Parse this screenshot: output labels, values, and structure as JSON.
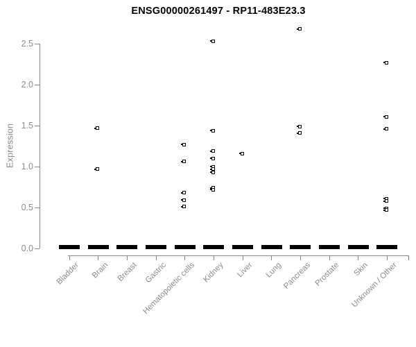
{
  "title": "ENSG00000261497 - RP11-483E23.3",
  "colors": {
    "points": "#000000",
    "axis": "#888888",
    "tick_labels": "#8c8c8c",
    "title": "#000000",
    "background": "#ffffff"
  },
  "chart_data": {
    "type": "scatter",
    "title": "ENSG00000261497 - RP11-483E23.3",
    "xlabel": "",
    "ylabel": "Expression",
    "ylim": [
      0,
      2.7
    ],
    "yticks": [
      0,
      0.5,
      1,
      1.5,
      2,
      2.5
    ],
    "ytick_labels": [
      "0.0",
      "0.5",
      "1.0",
      "1.5",
      "2.0",
      "2.5"
    ],
    "grid": false,
    "legend": null,
    "marker": "open-square",
    "categories": [
      "Bladder",
      "Brain",
      "Breast",
      "Gastric",
      "Hematopoietic cells",
      "Kidney",
      "Liver",
      "Lung",
      "Pancreas",
      "Prostate",
      "Skin",
      "Unknown / Other"
    ],
    "series": [
      {
        "category": "Bladder",
        "zero_cluster": true,
        "points": []
      },
      {
        "category": "Brain",
        "zero_cluster": true,
        "points": [
          1.47,
          0.97
        ]
      },
      {
        "category": "Breast",
        "zero_cluster": true,
        "points": []
      },
      {
        "category": "Gastric",
        "zero_cluster": true,
        "points": []
      },
      {
        "category": "Hematopoietic cells",
        "zero_cluster": true,
        "points": [
          1.27,
          1.06,
          0.68,
          0.59,
          0.51
        ]
      },
      {
        "category": "Kidney",
        "zero_cluster": true,
        "points": [
          2.53,
          1.44,
          1.19,
          1.1,
          1.0,
          0.97,
          0.93,
          0.74,
          0.72
        ]
      },
      {
        "category": "Liver",
        "zero_cluster": true,
        "points": [
          1.16
        ]
      },
      {
        "category": "Lung",
        "zero_cluster": true,
        "points": []
      },
      {
        "category": "Pancreas",
        "zero_cluster": true,
        "points": [
          2.68,
          1.49,
          1.41
        ]
      },
      {
        "category": "Prostate",
        "zero_cluster": true,
        "points": []
      },
      {
        "category": "Skin",
        "zero_cluster": true,
        "points": []
      },
      {
        "category": "Unknown / Other",
        "zero_cluster": true,
        "points": [
          2.27,
          1.61,
          1.46,
          0.61,
          0.58,
          0.49,
          0.47
        ]
      }
    ]
  }
}
